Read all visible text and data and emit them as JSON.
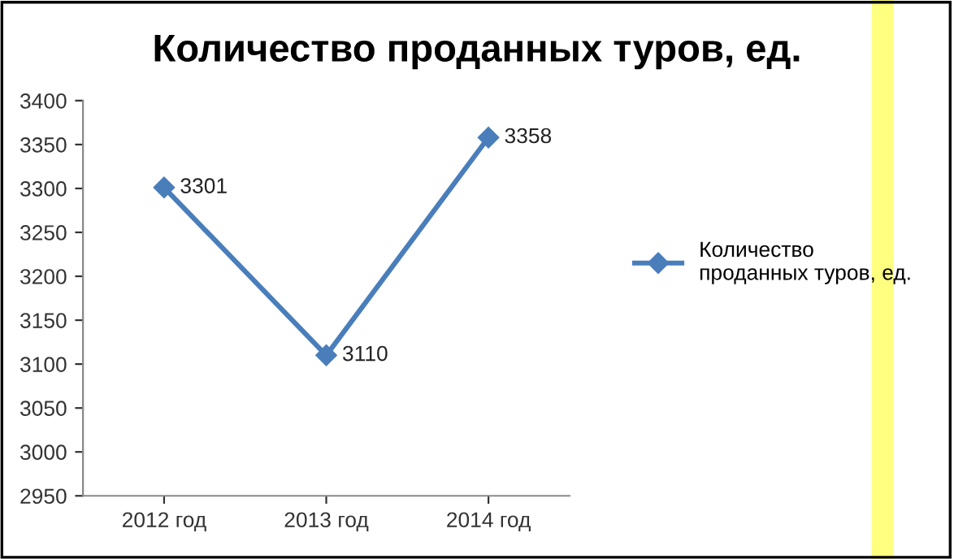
{
  "chart_data": {
    "type": "line",
    "title": "Количество проданных туров, ед.",
    "categories": [
      "2012 год",
      "2013 год",
      "2014 год"
    ],
    "series": [
      {
        "name": "Количество проданных туров, ед.",
        "color": "#4a7ebb",
        "values": [
          3301,
          3110,
          3358
        ]
      }
    ],
    "ylim": [
      2950,
      3400
    ],
    "yticks": [
      2950,
      3000,
      3050,
      3100,
      3150,
      3200,
      3250,
      3300,
      3350,
      3400
    ],
    "data_labels": true,
    "legend": "right",
    "marker": "diamond",
    "line_style": "solid",
    "grid": false
  }
}
